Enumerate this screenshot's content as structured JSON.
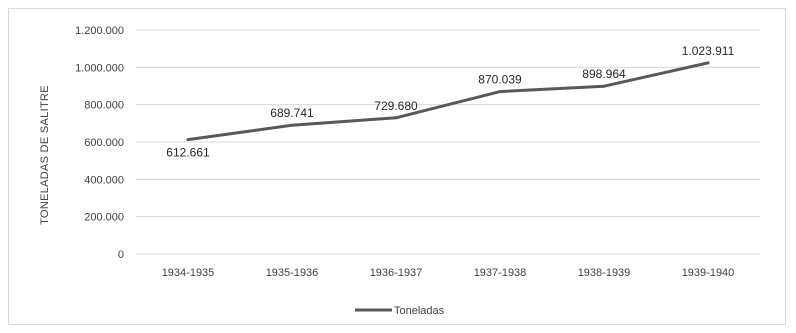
{
  "chart_data": {
    "type": "line",
    "categories": [
      "1934-1935",
      "1935-1936",
      "1936-1937",
      "1937-1938",
      "1938-1939",
      "1939-1940"
    ],
    "series": [
      {
        "name": "Toneladas",
        "values": [
          612661,
          689741,
          729680,
          870039,
          898964,
          1023911
        ],
        "labels": [
          "612.661",
          "689.741",
          "729.680",
          "870.039",
          "898.964",
          "1.023.911"
        ],
        "color": "#595959"
      }
    ],
    "ylabel": "TONELADAS DE SALITRE",
    "xlabel": "",
    "ylim": [
      0,
      1200000
    ],
    "yticks": [
      0,
      200000,
      400000,
      600000,
      800000,
      1000000,
      1200000
    ],
    "ytick_labels": [
      "0",
      "200.000",
      "400.000",
      "600.000",
      "800.000",
      "1.000.000",
      "1.200.000"
    ],
    "grid": true,
    "legend_position": "bottom"
  }
}
